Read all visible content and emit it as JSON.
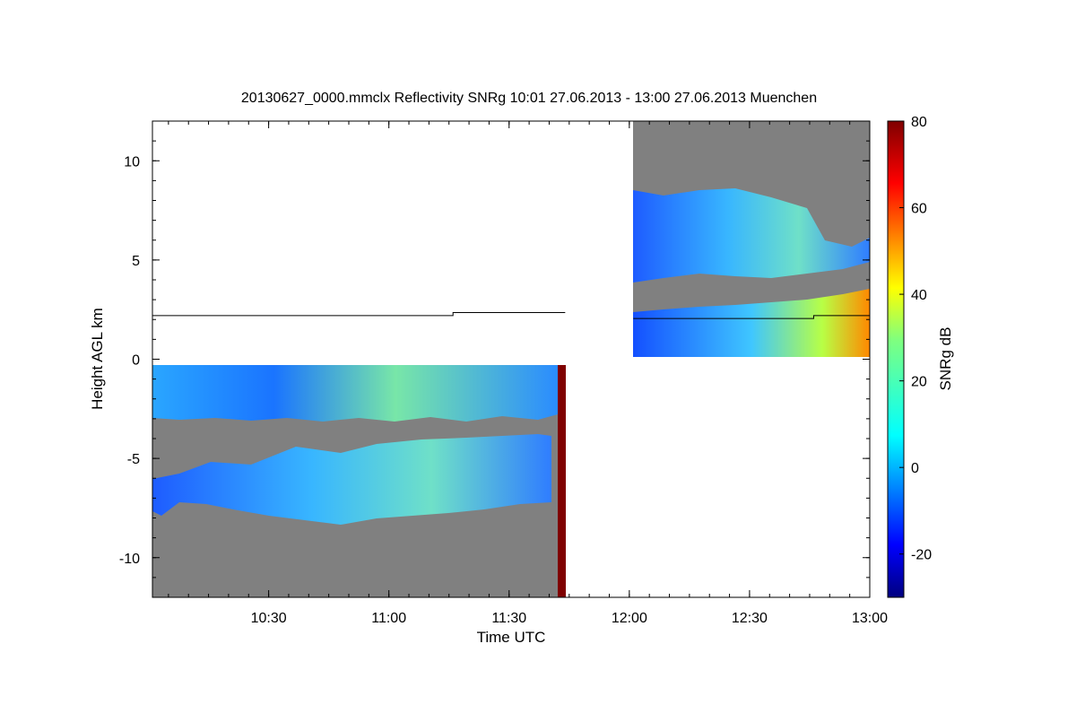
{
  "chart_data": {
    "type": "heatmap",
    "title": "20130627_0000.mmclx Reflectivity SNRg   10:01 27.06.2013 - 13:00 27.06.2013 Muenchen",
    "xlabel": "Time UTC",
    "ylabel": "Height AGL km",
    "x_range": [
      "10:01",
      "13:00"
    ],
    "x_ticks": [
      "10:30",
      "11:00",
      "11:30",
      "12:00",
      "12:30",
      "13:00"
    ],
    "ylim": [
      -12,
      12
    ],
    "y_ticks": [
      10,
      5,
      0,
      -5,
      -10
    ],
    "y_tick_labels": [
      "10",
      "5",
      "0",
      "-5",
      "-10"
    ],
    "colorbar": {
      "label": "SNRg dB",
      "range": [
        -30,
        80
      ],
      "ticks": [
        80,
        60,
        40,
        20,
        0,
        -20
      ],
      "tick_labels": [
        "80",
        "60",
        "40",
        "20",
        "0",
        "-20"
      ],
      "colormap": "jet"
    },
    "no_signal_color": "#808080",
    "segments": [
      {
        "time_range": [
          "10:01",
          "11:44"
        ],
        "height_range_km": [
          -12,
          0
        ],
        "cloud_layers": [
          {
            "height_km": [
              -3.0,
              -0.1
            ],
            "snr_db": [
              -20,
              30
            ]
          },
          {
            "height_km": [
              -8.3,
              -3.6
            ],
            "snr_db": [
              -20,
              20
            ]
          }
        ],
        "melting_line_km": [
          {
            "time": "10:01",
            "height": 2.2
          },
          {
            "time": "11:16",
            "height": 2.2
          },
          {
            "time": "11:16",
            "height": 2.35
          },
          {
            "time": "11:44",
            "height": 2.35
          }
        ]
      },
      {
        "time_range": [
          "12:01",
          "13:00"
        ],
        "height_range_km": [
          0,
          12
        ],
        "cloud_layers": [
          {
            "height_km": [
              3.9,
              8.6
            ],
            "snr_db": [
              -20,
              20
            ]
          },
          {
            "height_km": [
              0.1,
              3.5
            ],
            "snr_db": [
              -20,
              60
            ]
          }
        ],
        "melting_line_km": [
          {
            "time": "12:01",
            "height": 2.05
          },
          {
            "time": "12:46",
            "height": 2.05
          },
          {
            "time": "12:46",
            "height": 2.2
          },
          {
            "time": "13:00",
            "height": 2.2
          }
        ]
      }
    ]
  }
}
